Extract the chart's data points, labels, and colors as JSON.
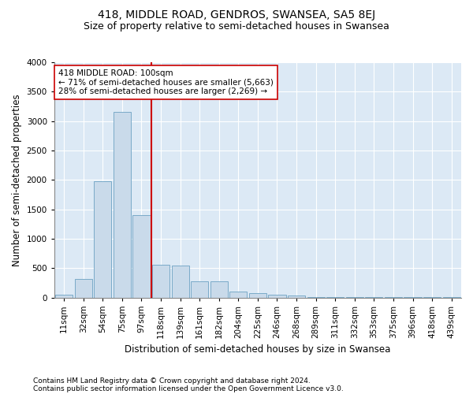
{
  "title": "418, MIDDLE ROAD, GENDROS, SWANSEA, SA5 8EJ",
  "subtitle": "Size of property relative to semi-detached houses in Swansea",
  "xlabel": "Distribution of semi-detached houses by size in Swansea",
  "ylabel": "Number of semi-detached properties",
  "footer_line1": "Contains HM Land Registry data © Crown copyright and database right 2024.",
  "footer_line2": "Contains public sector information licensed under the Open Government Licence v3.0.",
  "annotation_title": "418 MIDDLE ROAD: 100sqm",
  "annotation_line1": "← 71% of semi-detached houses are smaller (5,663)",
  "annotation_line2": "28% of semi-detached houses are larger (2,269) →",
  "bar_color": "#c9daea",
  "bar_edge_color": "#7aaac8",
  "subject_line_color": "#cc0000",
  "background_color": "#dce9f5",
  "categories": [
    "11sqm",
    "32sqm",
    "54sqm",
    "75sqm",
    "97sqm",
    "118sqm",
    "139sqm",
    "161sqm",
    "182sqm",
    "204sqm",
    "225sqm",
    "246sqm",
    "268sqm",
    "289sqm",
    "311sqm",
    "332sqm",
    "353sqm",
    "375sqm",
    "396sqm",
    "418sqm",
    "439sqm"
  ],
  "values": [
    50,
    310,
    1980,
    3160,
    1400,
    550,
    540,
    270,
    270,
    100,
    70,
    45,
    35,
    12,
    6,
    4,
    2,
    2,
    1,
    1,
    1
  ],
  "ylim": [
    0,
    4000
  ],
  "yticks": [
    0,
    500,
    1000,
    1500,
    2000,
    2500,
    3000,
    3500,
    4000
  ],
  "subject_bar_index": 4,
  "title_fontsize": 10,
  "subtitle_fontsize": 9,
  "axis_fontsize": 8.5,
  "tick_fontsize": 7.5,
  "annotation_fontsize": 7.5,
  "footer_fontsize": 6.5
}
